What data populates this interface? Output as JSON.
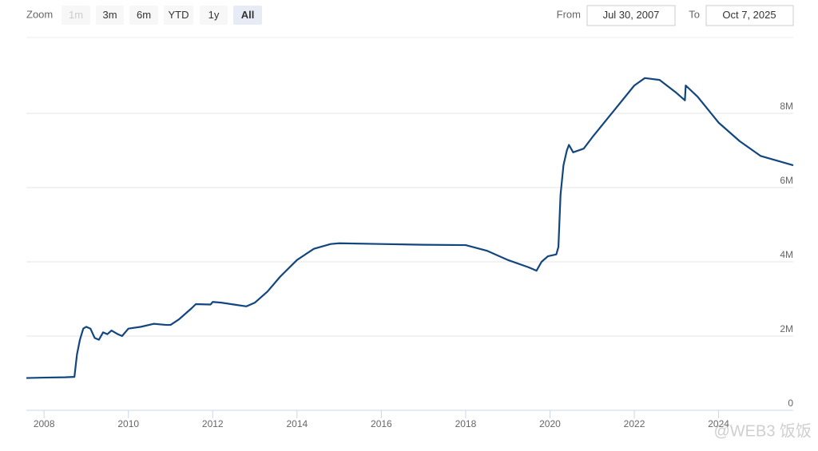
{
  "chart_data": {
    "type": "line",
    "range_selector": {
      "label": "Zoom",
      "buttons": [
        "1m",
        "3m",
        "6m",
        "YTD",
        "1y",
        "All"
      ],
      "selected": 5,
      "disabled": [
        0
      ]
    },
    "date_inputs": {
      "from_label": "From",
      "from": "Jul 30, 2007",
      "to_label": "To",
      "to": "Oct 7, 2025"
    },
    "color": "#12467e",
    "x": [
      2007.58,
      2008.0,
      2008.5,
      2008.72,
      2008.78,
      2008.85,
      2008.93,
      2009.0,
      2009.1,
      2009.2,
      2009.3,
      2009.4,
      2009.5,
      2009.6,
      2009.75,
      2009.85,
      2010.0,
      2010.3,
      2010.6,
      2010.9,
      2011.0,
      2011.2,
      2011.5,
      2011.6,
      2011.95,
      2012.0,
      2012.2,
      2012.5,
      2012.8,
      2013.0,
      2013.3,
      2013.6,
      2014.0,
      2014.4,
      2014.8,
      2015.0,
      2016.0,
      2017.0,
      2018.0,
      2018.5,
      2019.0,
      2019.5,
      2019.68,
      2019.8,
      2019.95,
      2020.15,
      2020.2,
      2020.25,
      2020.32,
      2020.4,
      2020.45,
      2020.55,
      2020.8,
      2021.0,
      2021.5,
      2022.0,
      2022.25,
      2022.6,
      2023.0,
      2023.2,
      2023.22,
      2023.5,
      2024.0,
      2024.5,
      2025.0,
      2025.77
    ],
    "values": [
      870000,
      880000,
      890000,
      900000,
      1500000,
      1900000,
      2200000,
      2250000,
      2200000,
      1950000,
      1900000,
      2100000,
      2050000,
      2150000,
      2050000,
      2000000,
      2200000,
      2250000,
      2330000,
      2300000,
      2300000,
      2450000,
      2750000,
      2860000,
      2850000,
      2920000,
      2900000,
      2850000,
      2800000,
      2900000,
      3200000,
      3600000,
      4050000,
      4350000,
      4480000,
      4500000,
      4480000,
      4460000,
      4450000,
      4300000,
      4050000,
      3850000,
      3760000,
      4000000,
      4150000,
      4200000,
      4400000,
      5800000,
      6600000,
      7000000,
      7150000,
      6950000,
      7050000,
      7350000,
      8050000,
      8750000,
      8950000,
      8900000,
      8550000,
      8350000,
      8750000,
      8450000,
      7750000,
      7250000,
      6850000,
      6600000
    ],
    "xlim": [
      2007.58,
      2025.77
    ],
    "xticks": [
      2008,
      2010,
      2012,
      2014,
      2016,
      2018,
      2020,
      2022,
      2024
    ],
    "ylim": [
      0,
      10000000
    ],
    "yticks": [
      0,
      {
        "value": 2000000,
        "label": "2M"
      },
      {
        "value": 4000000,
        "label": "4M"
      },
      {
        "value": 6000000,
        "label": "6M"
      },
      {
        "value": 8000000,
        "label": "8M"
      }
    ],
    "grid": true,
    "watermark": "@WEB3 饭饭"
  }
}
